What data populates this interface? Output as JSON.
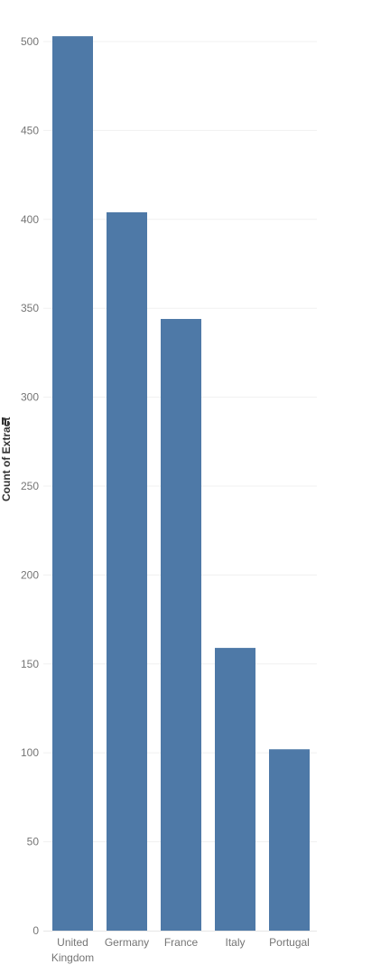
{
  "chart_data": {
    "type": "bar",
    "categories": [
      [
        "United",
        "Kingdom"
      ],
      [
        "Germany"
      ],
      [
        "France"
      ],
      [
        "Italy"
      ],
      [
        "Portugal"
      ]
    ],
    "values": [
      503,
      404,
      344,
      159,
      102
    ],
    "title": "",
    "xlabel": "",
    "ylabel": "Count of Extract",
    "ylim": [
      0,
      500
    ],
    "yticks": [
      0,
      50,
      100,
      150,
      200,
      250,
      300,
      350,
      400,
      450,
      500
    ],
    "grid": true,
    "legend": "none",
    "bar_color": "#4e79a7",
    "gridline_color": "#f0f0f0",
    "axis_line_color": "#e6e6e6",
    "sort_icon": "sort-descending-icon"
  }
}
